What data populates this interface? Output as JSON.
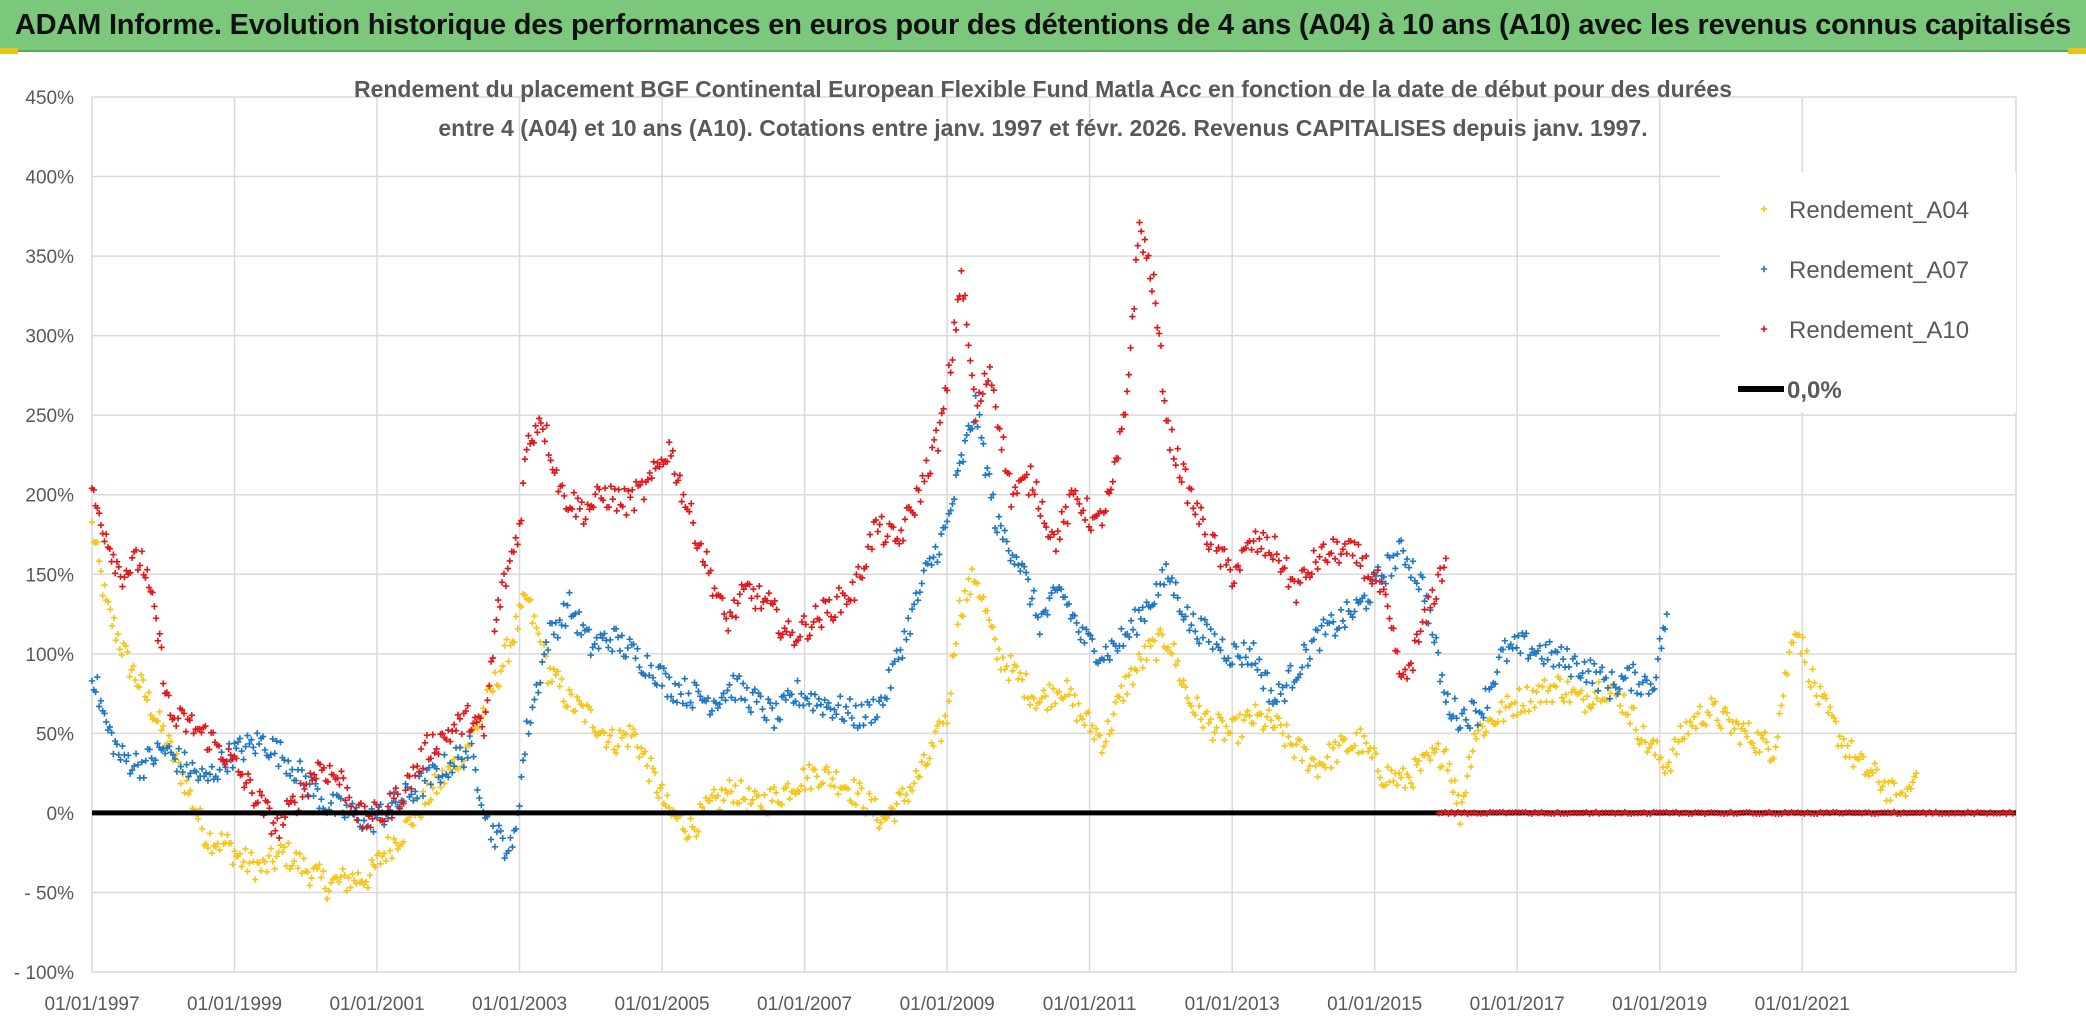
{
  "banner": {
    "title": "ADAM Informe. Evolution historique des performances en euros pour des détentions de 4 ans (A04) à 10 ans (A10) avec les revenus connus capitalisés"
  },
  "chart_data": {
    "type": "scatter",
    "title_line1": "Rendement du placement BGF Continental European Flexible Fund Matla Acc en fonction de la date de début pour des durées",
    "title_line2": "entre 4 (A04) et 10 ans (A10). Cotations entre janv. 1997 et févr. 2026. Revenus CAPITALISES depuis janv. 1997.",
    "xlabel": "",
    "ylabel": "",
    "xlim": [
      1997.0,
      2024.0
    ],
    "ylim": [
      -100,
      450
    ],
    "y_ticks": [
      450,
      400,
      350,
      300,
      250,
      200,
      150,
      100,
      50,
      0,
      -50,
      -100
    ],
    "y_tick_labels": [
      "450%",
      "400%",
      "350%",
      "300%",
      "250%",
      "200%",
      "150%",
      "100%",
      "50%",
      "0%",
      "- 50%",
      "- 100%"
    ],
    "x_ticks": [
      1997,
      1999,
      2001,
      2003,
      2005,
      2007,
      2009,
      2011,
      2013,
      2015,
      2017,
      2019,
      2021
    ],
    "x_tick_labels": [
      "01/01/1997",
      "01/01/1999",
      "01/01/2001",
      "01/01/2003",
      "01/01/2005",
      "01/01/2007",
      "01/01/2009",
      "01/01/2011",
      "01/01/2013",
      "01/01/2015",
      "01/01/2017",
      "01/01/2019",
      "01/01/2021"
    ],
    "grid": true,
    "legend_position": "top-right",
    "colors": {
      "A04": "#f5c518",
      "A07": "#1f77c4",
      "A10": "#e3161a",
      "zero": "#000000",
      "grid": "#d9d9d9"
    },
    "legend": [
      {
        "name": "Rendement_A04",
        "marker": "plus",
        "color": "#f5c518"
      },
      {
        "name": "Rendement_A07",
        "marker": "plus",
        "color": "#1f77c4"
      },
      {
        "name": "Rendement_A10",
        "marker": "plus",
        "color": "#e3161a"
      },
      {
        "name": "0,0%",
        "marker": "line",
        "color": "#000000"
      }
    ],
    "series": [
      {
        "name": "Rendement_A04",
        "x": [
          1997.0,
          1997.2,
          1997.5,
          1997.8,
          1998.0,
          1998.3,
          1998.6,
          1998.9,
          1999.1,
          1999.4,
          1999.7,
          2000.0,
          2000.3,
          2000.6,
          2000.9,
          2001.1,
          2001.4,
          2001.7,
          2002.0,
          2002.3,
          2002.6,
          2002.9,
          2003.1,
          2003.4,
          2003.7,
          2004.0,
          2004.3,
          2004.6,
          2004.9,
          2005.1,
          2005.4,
          2005.7,
          2006.0,
          2006.3,
          2006.6,
          2006.9,
          2007.2,
          2007.5,
          2007.8,
          2008.1,
          2008.4,
          2008.7,
          2009.0,
          2009.15,
          2009.4,
          2009.7,
          2010.0,
          2010.3,
          2010.6,
          2010.9,
          2011.2,
          2011.5,
          2011.8,
          2012.1,
          2012.4,
          2012.7,
          2013.0,
          2013.3,
          2013.6,
          2013.9,
          2014.2,
          2014.5,
          2014.8,
          2015.1,
          2015.4,
          2015.7,
          2016.0,
          2016.2,
          2016.4,
          2016.7,
          2017.0,
          2017.3,
          2017.6,
          2017.9,
          2018.2,
          2018.5,
          2018.8,
          2019.1,
          2019.4,
          2019.7,
          2020.0,
          2020.2,
          2020.4,
          2020.6,
          2020.9,
          2021.2,
          2021.5,
          2021.8,
          2022.1,
          2022.4,
          2022.6
        ],
        "values": [
          180,
          130,
          95,
          70,
          50,
          20,
          -15,
          -20,
          -30,
          -35,
          -25,
          -35,
          -45,
          -42,
          -40,
          -25,
          -10,
          10,
          25,
          45,
          75,
          110,
          135,
          90,
          70,
          60,
          45,
          50,
          20,
          0,
          -10,
          5,
          15,
          5,
          10,
          20,
          25,
          20,
          10,
          -5,
          10,
          30,
          60,
          125,
          150,
          100,
          85,
          70,
          80,
          60,
          45,
          80,
          100,
          110,
          70,
          55,
          50,
          60,
          55,
          40,
          30,
          40,
          45,
          25,
          20,
          30,
          40,
          0,
          50,
          60,
          70,
          75,
          80,
          70,
          80,
          70,
          45,
          30,
          55,
          65,
          55,
          50,
          45,
          40,
          120,
          75,
          50,
          30,
          20,
          5,
          25
        ]
      },
      {
        "name": "Rendement_A07",
        "x": [
          1997.0,
          1997.2,
          1997.4,
          1997.7,
          1998.0,
          1998.3,
          1998.6,
          1998.9,
          1999.1,
          1999.4,
          1999.7,
          2000.0,
          2000.3,
          2000.6,
          2000.9,
          2001.1,
          2001.4,
          2001.7,
          2002.0,
          2002.3,
          2002.6,
          2002.9,
          2003.1,
          2003.4,
          2003.7,
          2004.0,
          2004.3,
          2004.6,
          2004.9,
          2005.1,
          2005.4,
          2005.7,
          2006.0,
          2006.3,
          2006.6,
          2006.9,
          2007.2,
          2007.5,
          2007.8,
          2008.1,
          2008.4,
          2008.7,
          2009.0,
          2009.2,
          2009.4,
          2009.7,
          2010.0,
          2010.3,
          2010.6,
          2010.9,
          2011.2,
          2011.5,
          2011.8,
          2012.1,
          2012.4,
          2012.7,
          2013.0,
          2013.3,
          2013.6,
          2013.9,
          2014.2,
          2014.5,
          2014.8,
          2015.1,
          2015.4,
          2015.7,
          2016.0,
          2016.2,
          2016.5,
          2016.8,
          2017.1,
          2017.4,
          2017.7,
          2018.0,
          2018.3,
          2018.6,
          2018.9,
          2019.1
        ],
        "values": [
          90,
          55,
          35,
          30,
          40,
          30,
          20,
          35,
          40,
          45,
          35,
          20,
          5,
          0,
          -5,
          0,
          10,
          20,
          30,
          40,
          -10,
          -25,
          50,
          110,
          130,
          105,
          110,
          100,
          90,
          80,
          75,
          70,
          80,
          70,
          60,
          75,
          70,
          65,
          60,
          70,
          110,
          150,
          180,
          220,
          255,
          180,
          160,
          120,
          140,
          110,
          100,
          110,
          130,
          150,
          120,
          110,
          100,
          100,
          70,
          90,
          110,
          120,
          130,
          150,
          165,
          140,
          70,
          60,
          65,
          100,
          105,
          100,
          95,
          90,
          80,
          85,
          80,
          125
        ]
      },
      {
        "name": "Rendement_A10",
        "x": [
          1997.0,
          1997.2,
          1997.4,
          1997.7,
          1997.9,
          1998.1,
          1998.4,
          1998.7,
          1999.0,
          1999.3,
          1999.6,
          1999.9,
          2000.2,
          2000.5,
          2000.8,
          2001.1,
          2001.4,
          2001.7,
          2002.0,
          2002.3,
          2002.5,
          2002.7,
          2003.0,
          2003.1,
          2003.3,
          2003.6,
          2003.9,
          2004.2,
          2004.5,
          2004.8,
          2005.1,
          2005.3,
          2005.6,
          2005.9,
          2006.2,
          2006.5,
          2006.8,
          2007.1,
          2007.4,
          2007.7,
          2008.0,
          2008.3,
          2008.6,
          2008.9,
          2009.05,
          2009.2,
          2009.4,
          2009.6,
          2009.9,
          2010.2,
          2010.5,
          2010.8,
          2011.1,
          2011.3,
          2011.5,
          2011.7,
          2011.9,
          2012.1,
          2012.4,
          2012.7,
          2013.0,
          2013.3,
          2013.6,
          2013.9,
          2014.2,
          2014.5,
          2014.8,
          2015.1,
          2015.4,
          2015.7,
          2016.0
        ],
        "values": [
          200,
          175,
          150,
          160,
          120,
          60,
          55,
          45,
          30,
          10,
          -10,
          10,
          30,
          20,
          -5,
          0,
          15,
          40,
          50,
          60,
          50,
          130,
          180,
          230,
          250,
          200,
          190,
          200,
          195,
          205,
          230,
          200,
          160,
          120,
          140,
          130,
          110,
          120,
          130,
          140,
          180,
          170,
          200,
          240,
          280,
          340,
          250,
          280,
          200,
          210,
          170,
          200,
          180,
          200,
          250,
          370,
          330,
          240,
          200,
          170,
          150,
          170,
          165,
          140,
          160,
          165,
          160,
          140,
          80,
          120,
          160
        ]
      }
    ],
    "zero_series_after": {
      "name": "Rendement_A10",
      "x_from": 2015.9,
      "x_to": 2024.0,
      "value": 0
    }
  }
}
